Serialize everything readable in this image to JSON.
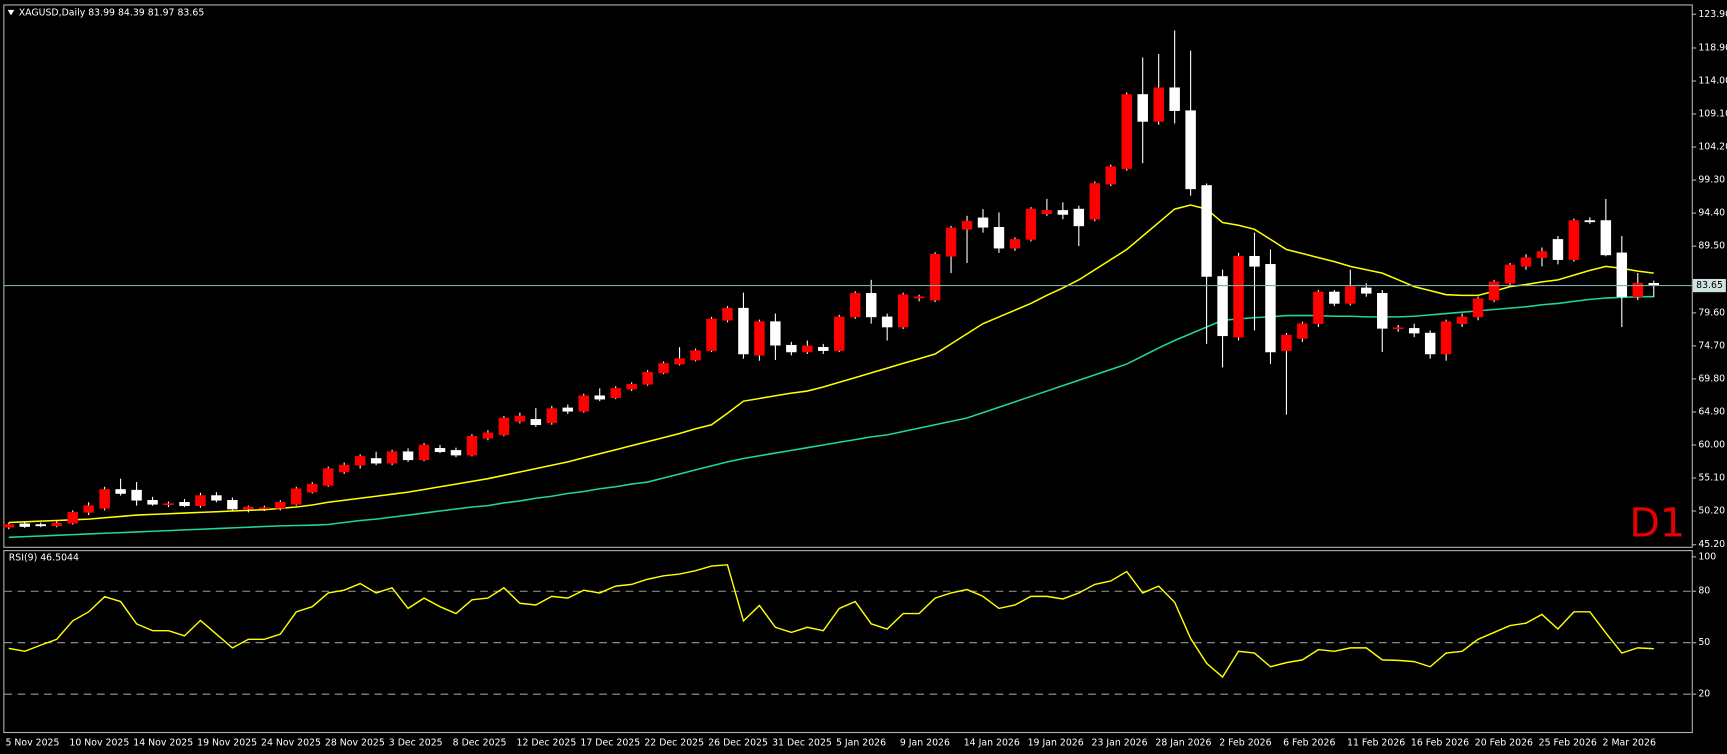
{
  "chart_data": [
    {
      "type": "candlestick",
      "title": "XAGUSD,Daily  83.99 84.39 81.97 83.65",
      "annotation": "D1",
      "up_color": "#ff0000",
      "down_color": "#ffffff",
      "categories": [
        "5 Nov 2025",
        null,
        null,
        null,
        "10 Nov 2025",
        null,
        null,
        null,
        "14 Nov 2025",
        null,
        null,
        null,
        "19 Nov 2025",
        null,
        null,
        null,
        "24 Nov 2025",
        null,
        null,
        null,
        "28 Nov 2025",
        null,
        null,
        null,
        "3 Dec 2025",
        null,
        null,
        null,
        "8 Dec 2025",
        null,
        null,
        null,
        "12 Dec 2025",
        null,
        null,
        null,
        "17 Dec 2025",
        null,
        null,
        null,
        "22 Dec 2025",
        null,
        null,
        null,
        "26 Dec 2025",
        null,
        null,
        null,
        "31 Dec 2025",
        null,
        null,
        null,
        "5 Jan 2026",
        null,
        null,
        null,
        "9 Jan 2026",
        null,
        null,
        null,
        "14 Jan 2026",
        null,
        null,
        null,
        "19 Jan 2026",
        null,
        null,
        null,
        "23 Jan 2026",
        null,
        null,
        null,
        "28 Jan 2026",
        null,
        null,
        null,
        "2 Feb 2026",
        null,
        null,
        null,
        "6 Feb 2026",
        null,
        null,
        null,
        "11 Feb 2026",
        null,
        null,
        null,
        "16 Feb 2026",
        null,
        null,
        null,
        "20 Feb 2026",
        null,
        null,
        null,
        "25 Feb 2026",
        null,
        null,
        null,
        "2 Mar 2026",
        null,
        null,
        null
      ],
      "open": [
        47.8,
        48.3,
        48.2,
        48.0,
        48.4,
        50.0,
        50.6,
        53.4,
        53.3,
        51.8,
        51.2,
        51.5,
        51.0,
        52.5,
        51.8,
        50.5,
        50.6,
        50.6,
        51.2,
        53.0,
        54.0,
        56.0,
        57.0,
        58.0,
        57.3,
        59.0,
        57.8,
        59.5,
        59.2,
        58.5,
        61.0,
        61.5,
        63.5,
        63.8,
        63.3,
        65.5,
        65.0,
        67.3,
        67.0,
        68.3,
        69.0,
        70.7,
        72.0,
        72.6,
        74.0,
        78.5,
        80.3,
        73.3,
        78.3,
        74.8,
        73.8,
        74.5,
        74.0,
        79.0,
        82.5,
        79.0,
        77.5,
        81.8,
        81.5,
        88.0,
        92.0,
        93.7,
        92.3,
        89.2,
        90.5,
        94.3,
        94.8,
        95.0,
        93.5,
        98.7,
        101.0,
        112.0,
        108.0,
        113.0,
        109.6,
        98.5,
        85.0,
        76.0,
        88.0,
        86.8,
        74.0,
        75.8,
        78.0,
        82.7,
        81.0,
        83.3,
        82.5,
        77.3,
        77.3,
        76.6,
        73.5,
        78.0,
        79.0,
        81.5,
        84.0,
        86.5,
        87.8,
        90.5,
        87.5,
        93.3,
        93.3,
        88.5,
        82.0,
        83.99
      ],
      "high": [
        48.5,
        48.6,
        48.5,
        48.7,
        50.3,
        51.5,
        53.8,
        55.0,
        54.5,
        52.3,
        51.6,
        52.0,
        52.9,
        53.0,
        52.2,
        51.0,
        51.0,
        51.8,
        53.8,
        54.5,
        56.8,
        57.4,
        58.6,
        59.0,
        59.3,
        59.5,
        60.3,
        60.0,
        59.6,
        61.6,
        62.2,
        64.3,
        64.8,
        65.5,
        65.8,
        66.0,
        67.6,
        68.4,
        68.7,
        69.3,
        71.1,
        72.4,
        74.5,
        74.3,
        79.0,
        80.6,
        82.6,
        78.6,
        79.5,
        75.3,
        75.5,
        75.0,
        79.3,
        82.8,
        84.5,
        79.5,
        82.6,
        82.3,
        88.6,
        92.5,
        94.0,
        95.0,
        94.5,
        90.8,
        95.3,
        96.5,
        96.0,
        95.5,
        99.1,
        101.6,
        112.3,
        117.5,
        118.0,
        121.5,
        118.5,
        98.8,
        86.0,
        88.5,
        91.5,
        89.0,
        76.6,
        78.3,
        83.0,
        83.0,
        86.0,
        84.0,
        83.0,
        77.8,
        78.0,
        77.0,
        78.6,
        79.5,
        82.0,
        84.5,
        87.0,
        88.3,
        89.3,
        91.0,
        93.6,
        93.8,
        96.5,
        91.0,
        85.5,
        84.39
      ],
      "low": [
        47.5,
        47.7,
        47.8,
        47.8,
        48.2,
        49.6,
        50.3,
        52.5,
        51.0,
        51.0,
        50.8,
        50.8,
        50.7,
        51.5,
        50.2,
        50.0,
        50.2,
        50.3,
        51.0,
        52.8,
        53.8,
        55.7,
        56.5,
        57.0,
        57.0,
        57.5,
        57.6,
        58.8,
        58.2,
        58.3,
        60.7,
        61.3,
        63.2,
        62.7,
        63.0,
        64.6,
        64.8,
        66.5,
        66.8,
        68.0,
        68.8,
        70.5,
        71.8,
        72.4,
        73.8,
        78.2,
        72.8,
        72.5,
        72.6,
        73.3,
        73.5,
        73.5,
        73.8,
        78.7,
        78.0,
        75.5,
        77.2,
        81.3,
        81.2,
        85.5,
        87.0,
        91.5,
        88.5,
        88.8,
        90.2,
        94.0,
        93.5,
        89.5,
        93.2,
        98.4,
        100.7,
        101.8,
        107.5,
        107.7,
        97.0,
        75.0,
        71.5,
        75.5,
        77.0,
        72.0,
        64.5,
        75.3,
        77.5,
        80.6,
        80.7,
        82.0,
        73.8,
        76.8,
        76.0,
        72.8,
        72.5,
        77.5,
        78.5,
        81.2,
        83.5,
        86.0,
        86.5,
        86.8,
        87.2,
        92.8,
        88.0,
        77.5,
        81.5,
        81.97
      ],
      "close": [
        48.2,
        47.9,
        48.0,
        48.4,
        50.0,
        51.0,
        53.4,
        52.8,
        51.8,
        51.2,
        51.3,
        51.0,
        52.5,
        51.8,
        50.5,
        50.8,
        50.7,
        51.5,
        53.5,
        54.2,
        56.5,
        57.0,
        58.3,
        57.3,
        59.0,
        57.8,
        60.0,
        59.0,
        58.5,
        61.3,
        61.8,
        64.0,
        64.3,
        63.0,
        65.4,
        65.0,
        67.3,
        66.8,
        68.4,
        69.0,
        70.8,
        72.1,
        72.8,
        74.0,
        78.7,
        80.3,
        73.5,
        78.3,
        74.8,
        73.8,
        74.7,
        74.0,
        79.0,
        82.5,
        79.0,
        77.5,
        82.3,
        82.0,
        88.3,
        92.2,
        93.2,
        92.3,
        89.2,
        90.5,
        95.0,
        94.8,
        94.2,
        92.5,
        98.8,
        101.3,
        112.0,
        108.0,
        113.0,
        109.6,
        98.0,
        85.0,
        76.2,
        88.0,
        86.5,
        73.8,
        76.3,
        78.0,
        82.7,
        81.0,
        83.5,
        82.5,
        77.3,
        77.4,
        76.6,
        73.5,
        78.3,
        79.0,
        81.7,
        84.2,
        86.7,
        87.8,
        88.7,
        87.5,
        93.3,
        93.1,
        88.2,
        82.0,
        84.0,
        83.65
      ],
      "series": [
        {
          "color": "#ffff00",
          "values": [
            48.5,
            48.6,
            48.7,
            48.8,
            48.9,
            49.0,
            49.2,
            49.4,
            49.6,
            49.7,
            49.8,
            49.9,
            50.0,
            50.1,
            50.2,
            50.3,
            50.4,
            50.6,
            50.8,
            51.1,
            51.5,
            51.8,
            52.1,
            52.4,
            52.7,
            53.0,
            53.4,
            53.8,
            54.2,
            54.6,
            55.0,
            55.5,
            56.0,
            56.5,
            57.0,
            57.5,
            58.1,
            58.7,
            59.3,
            59.9,
            60.5,
            61.1,
            61.7,
            62.4,
            63.0,
            64.7,
            66.5,
            66.9,
            67.3,
            67.7,
            68.0,
            68.6,
            69.3,
            70.0,
            70.7,
            71.4,
            72.1,
            72.8,
            73.5,
            75.0,
            76.5,
            78.0,
            79.0,
            80.0,
            81.0,
            82.2,
            83.3,
            84.5,
            86.0,
            87.5,
            89.0,
            91.0,
            93.0,
            95.0,
            95.6,
            95.0,
            93.0,
            92.6,
            92.0,
            90.5,
            89.0,
            88.4,
            87.8,
            87.2,
            86.5,
            86.0,
            85.5,
            84.5,
            83.5,
            82.9,
            82.3,
            82.2,
            82.2,
            82.8,
            83.5,
            83.8,
            84.2,
            84.5,
            85.2,
            85.9,
            86.5,
            86.2,
            85.8,
            85.5
          ]
        },
        {
          "color": "#1fd6a0",
          "values": [
            46.3,
            46.4,
            46.5,
            46.6,
            46.7,
            46.8,
            46.9,
            47.0,
            47.1,
            47.2,
            47.3,
            47.4,
            47.5,
            47.6,
            47.7,
            47.8,
            47.9,
            48.0,
            48.05,
            48.1,
            48.2,
            48.5,
            48.8,
            49.0,
            49.3,
            49.6,
            49.9,
            50.2,
            50.5,
            50.8,
            51.0,
            51.4,
            51.7,
            52.1,
            52.4,
            52.8,
            53.1,
            53.5,
            53.8,
            54.2,
            54.5,
            55.1,
            55.7,
            56.3,
            56.9,
            57.5,
            58.0,
            58.4,
            58.8,
            59.2,
            59.6,
            60.0,
            60.4,
            60.8,
            61.2,
            61.5,
            62.0,
            62.5,
            63.0,
            63.5,
            64.0,
            64.8,
            65.6,
            66.4,
            67.2,
            68.0,
            68.8,
            69.6,
            70.4,
            71.2,
            72.0,
            73.2,
            74.4,
            75.5,
            76.5,
            77.5,
            78.5,
            78.7,
            78.9,
            79.0,
            79.2,
            79.2,
            79.2,
            79.1,
            79.1,
            79.0,
            79.0,
            79.0,
            79.1,
            79.3,
            79.5,
            79.7,
            79.9,
            80.1,
            80.3,
            80.5,
            80.8,
            81.0,
            81.3,
            81.6,
            81.8,
            81.9,
            82.0,
            82.0
          ]
        }
      ],
      "last_price": 83.65,
      "ylim": [
        44.9,
        125.2
      ],
      "yticks": [
        {
          "value": 123.9,
          "label": "123.90"
        },
        {
          "value": 118.9,
          "label": "118.90"
        },
        {
          "value": 114.0,
          "label": "114.00"
        },
        {
          "value": 109.1,
          "label": "109.10"
        },
        {
          "value": 104.2,
          "label": "104.20"
        },
        {
          "value": 99.3,
          "label": "99.30"
        },
        {
          "value": 94.4,
          "label": "94.40"
        },
        {
          "value": 89.5,
          "label": "89.50"
        },
        {
          "value": 79.6,
          "label": "79.60"
        },
        {
          "value": 74.7,
          "label": "74.70"
        },
        {
          "value": 69.8,
          "label": "69.80"
        },
        {
          "value": 64.9,
          "label": "64.90"
        },
        {
          "value": 60.0,
          "label": "60.00"
        },
        {
          "value": 55.1,
          "label": "55.10"
        },
        {
          "value": 50.2,
          "label": "50.20"
        },
        {
          "value": 45.2,
          "label": "45.20"
        }
      ]
    },
    {
      "type": "line",
      "title": "RSI(9) 46.5044",
      "color": "#ffff00",
      "values": [
        46.7,
        45,
        48.6,
        52,
        62.7,
        68,
        76.8,
        74,
        61,
        57,
        57,
        54,
        63,
        55,
        47,
        52,
        52,
        55,
        68,
        71,
        79,
        80.6,
        84.5,
        79,
        82,
        70,
        76,
        71,
        67,
        75,
        76,
        82,
        73,
        72,
        77,
        76,
        80.6,
        79,
        83,
        84,
        87,
        89,
        90,
        92,
        94.7,
        95.4,
        62.7,
        71.7,
        59,
        56,
        59,
        57,
        70,
        74,
        61,
        58,
        67,
        67,
        76,
        79,
        81,
        77,
        70,
        72,
        77,
        77,
        75.5,
        79,
        84,
        86,
        91.5,
        79,
        83,
        73.6,
        52.5,
        38,
        30,
        45,
        44,
        36,
        38.4,
        40,
        46,
        45,
        47,
        47,
        40,
        39.7,
        39,
        36,
        44,
        45,
        52,
        56,
        60,
        61.4,
        66.5,
        58,
        68,
        68,
        55.7,
        44,
        47,
        46.5044
      ],
      "ylim": [
        -2,
        104
      ],
      "yticks": [
        100,
        80,
        50,
        20
      ],
      "levels": [
        80,
        50,
        20
      ]
    }
  ]
}
